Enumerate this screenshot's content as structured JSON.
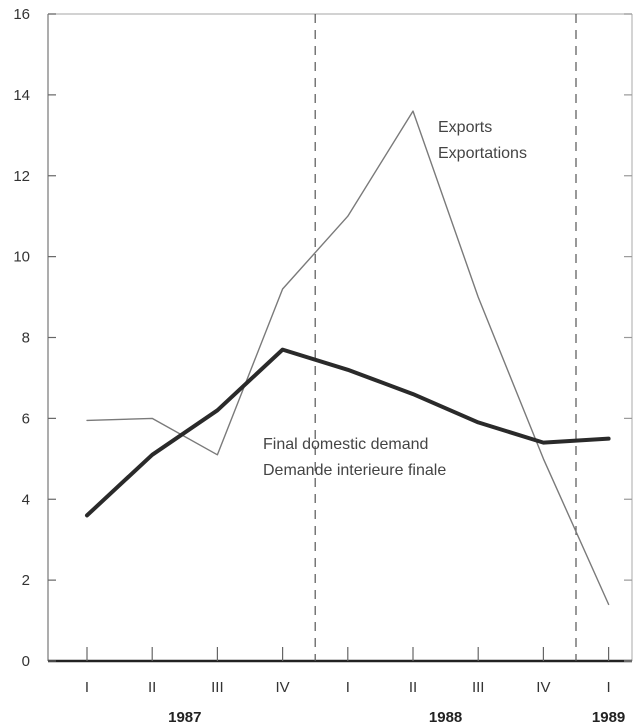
{
  "chart_data": {
    "type": "line",
    "title": "",
    "xlabel": "",
    "ylabel": "",
    "ylim": [
      0,
      16
    ],
    "yticks": [
      0,
      2,
      4,
      6,
      8,
      10,
      12,
      14,
      16
    ],
    "categories": [
      "I",
      "II",
      "III",
      "IV",
      "I",
      "II",
      "III",
      "IV",
      "I"
    ],
    "years": [
      {
        "label": "1987",
        "center_index": 1.5
      },
      {
        "label": "1988",
        "center_index": 5.5
      },
      {
        "label": "1989",
        "center_index": 8
      }
    ],
    "series": [
      {
        "name": "Exports Exportations",
        "label_lines": [
          "Exports",
          "Exportations"
        ],
        "values": [
          5.95,
          6.0,
          5.1,
          9.2,
          11.0,
          13.6,
          9.0,
          5.0,
          1.4
        ],
        "color": "#7a7a7a",
        "weight": "thin"
      },
      {
        "name": "Final domestic demand Demande intérieure finale",
        "label_lines": [
          "Final domestic demand",
          "Demande interieure finale"
        ],
        "values": [
          3.6,
          5.1,
          6.2,
          7.7,
          7.2,
          6.6,
          5.9,
          5.4,
          5.5
        ],
        "color": "#2a2a2a",
        "weight": "thick"
      }
    ],
    "grid": false,
    "dashed_dividers_after_index": [
      3.5,
      7.5
    ]
  }
}
